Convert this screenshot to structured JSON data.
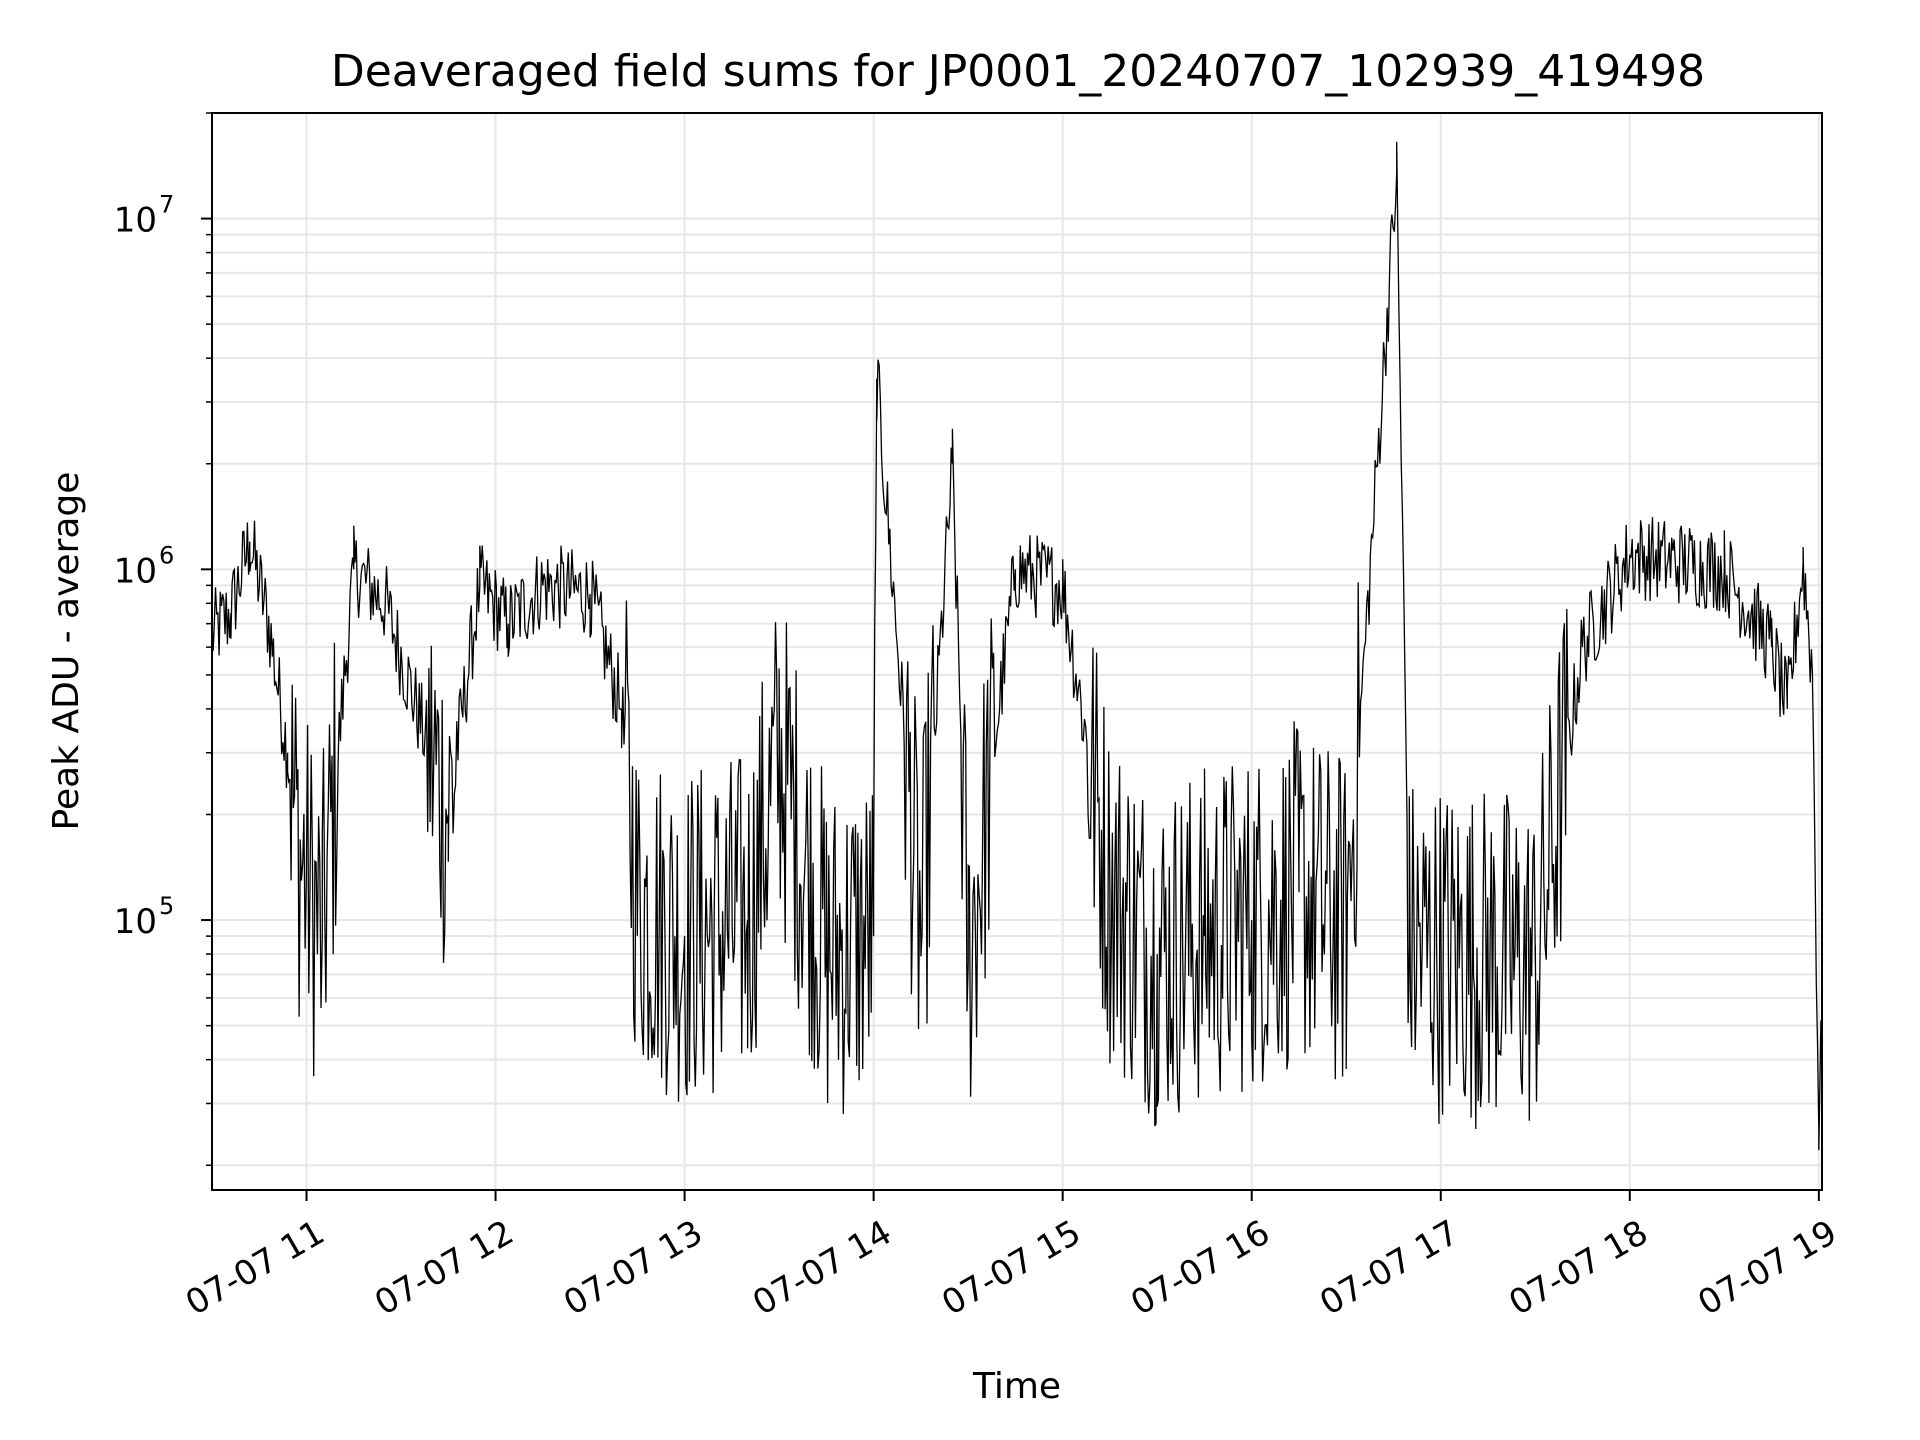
{
  "chart_data": {
    "type": "line",
    "title": "Deaveraged field sums for JP0001_20240707_102939_419498",
    "xlabel": "Time",
    "ylabel": "Peak ADU - average",
    "xscale": "time",
    "yscale": "log",
    "xlim": [
      "2024-07-07 10:30",
      "2024-07-07 19:01"
    ],
    "ylim": [
      17000,
      20000000
    ],
    "grid": true,
    "line_color": "#000000",
    "x_ticks": [
      {
        "value": "2024-07-07 11:00",
        "label": "07-07 11"
      },
      {
        "value": "2024-07-07 12:00",
        "label": "07-07 12"
      },
      {
        "value": "2024-07-07 13:00",
        "label": "07-07 13"
      },
      {
        "value": "2024-07-07 14:00",
        "label": "07-07 14"
      },
      {
        "value": "2024-07-07 15:00",
        "label": "07-07 15"
      },
      {
        "value": "2024-07-07 16:00",
        "label": "07-07 16"
      },
      {
        "value": "2024-07-07 17:00",
        "label": "07-07 17"
      },
      {
        "value": "2024-07-07 18:00",
        "label": "07-07 18"
      },
      {
        "value": "2024-07-07 19:00",
        "label": "07-07 19"
      }
    ],
    "y_ticks": [
      {
        "value": 100000,
        "base": "10",
        "exp": "5"
      },
      {
        "value": 1000000,
        "base": "10",
        "exp": "6"
      },
      {
        "value": 10000000,
        "base": "10",
        "exp": "7"
      }
    ],
    "series": [
      {
        "x": [
          "2024-07-07 10:30",
          "2024-07-07 10:36",
          "2024-07-07 10:42",
          "2024-07-07 10:48",
          "2024-07-07 10:54",
          "2024-07-07 10:58",
          "2024-07-07 11:05",
          "2024-07-07 11:15",
          "2024-07-07 11:25",
          "2024-07-07 11:35",
          "2024-07-07 11:45",
          "2024-07-07 11:55",
          "2024-07-07 12:04",
          "2024-07-07 12:15",
          "2024-07-07 12:30",
          "2024-07-07 12:40",
          "2024-07-07 12:45",
          "2024-07-07 13:00",
          "2024-07-07 13:20",
          "2024-07-07 13:30",
          "2024-07-07 13:45",
          "2024-07-07 14:00",
          "2024-07-07 14:01",
          "2024-07-07 14:15",
          "2024-07-07 14:25",
          "2024-07-07 14:30",
          "2024-07-07 14:45",
          "2024-07-07 15:00",
          "2024-07-07 15:15",
          "2024-07-07 15:30",
          "2024-07-07 15:45",
          "2024-07-07 16:00",
          "2024-07-07 16:15",
          "2024-07-07 16:30",
          "2024-07-07 16:46",
          "2024-07-07 16:50",
          "2024-07-07 17:10",
          "2024-07-07 17:30",
          "2024-07-07 17:45",
          "2024-07-07 18:00",
          "2024-07-07 18:30",
          "2024-07-07 18:45",
          "2024-07-07 18:50",
          "2024-07-07 18:55",
          "2024-07-07 18:58",
          "2024-07-07 19:00",
          "2024-07-07 19:01"
        ],
        "y": [
          650000,
          750000,
          1200000,
          700000,
          300000,
          150000,
          90000,
          1000000,
          800000,
          400000,
          200000,
          900000,
          700000,
          900000,
          850000,
          400000,
          110000,
          90000,
          100000,
          300000,
          80000,
          90000,
          3500000,
          85000,
          2000000,
          75000,
          1000000,
          900000,
          120000,
          80000,
          90000,
          100000,
          120000,
          95000,
          13500000,
          85000,
          80000,
          75000,
          600000,
          1100000,
          1000000,
          600000,
          400000,
          1050000,
          500000,
          25000,
          50000
        ]
      }
    ]
  }
}
